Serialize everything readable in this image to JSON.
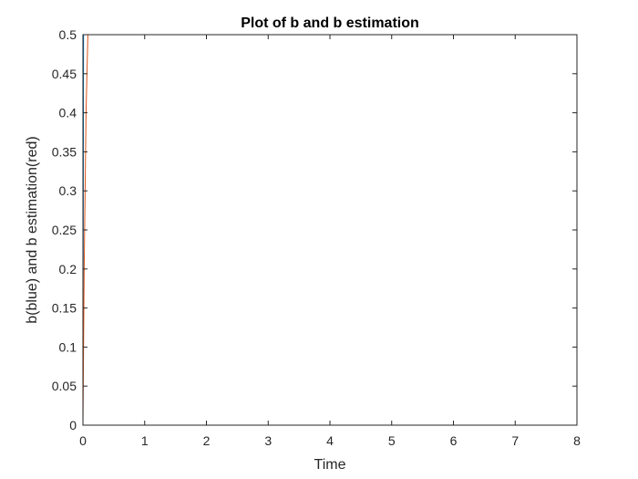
{
  "chart_data": {
    "type": "line",
    "title": "Plot of b and b estimation",
    "xlabel": "Time",
    "ylabel": "b(blue) and b estimation(red)",
    "xlim": [
      0,
      8
    ],
    "ylim": [
      0,
      0.5
    ],
    "xticks": [
      0,
      1,
      2,
      3,
      4,
      5,
      6,
      7,
      8
    ],
    "yticks": [
      0,
      0.05,
      0.1,
      0.15,
      0.2,
      0.25,
      0.3,
      0.35,
      0.4,
      0.45,
      0.5
    ],
    "xtick_labels": [
      "0",
      "1",
      "2",
      "3",
      "4",
      "5",
      "6",
      "7",
      "8"
    ],
    "ytick_labels": [
      "0",
      "0.05",
      "0.1",
      "0.15",
      "0.2",
      "0.25",
      "0.3",
      "0.35",
      "0.4",
      "0.45",
      "0.5"
    ],
    "grid": false,
    "series": [
      {
        "color": "#0072BD",
        "x": [
          0,
          0.01,
          8
        ],
        "y": [
          0,
          0.5,
          0.5
        ]
      },
      {
        "color": "#D95319",
        "x": [
          0,
          0.02,
          0.05,
          0.08,
          8
        ],
        "y": [
          0,
          0.2,
          0.4,
          0.5,
          0.5
        ]
      }
    ]
  }
}
